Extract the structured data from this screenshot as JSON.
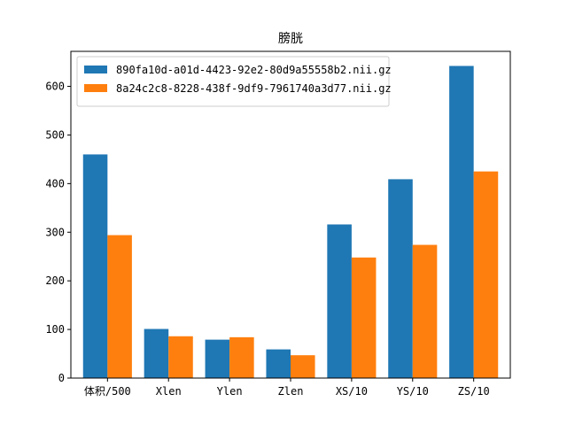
{
  "chart_data": {
    "type": "bar",
    "title": "膀胱",
    "xlabel": "",
    "ylabel": "",
    "categories": [
      "体积/500",
      "Xlen",
      "Ylen",
      "Zlen",
      "XS/10",
      "YS/10",
      "ZS/10"
    ],
    "series": [
      {
        "name": "890fa10d-a01d-4423-92e2-80d9a55558b2.nii.gz",
        "color": "#1f77b4",
        "values": [
          460,
          101,
          79,
          59,
          316,
          409,
          642
        ]
      },
      {
        "name": "8a24c2c8-8228-438f-9df9-7961740a3d77.nii.gz",
        "color": "#ff7f0e",
        "values": [
          294,
          86,
          84,
          47,
          248,
          274,
          425
        ]
      }
    ],
    "ylim": [
      0,
      672
    ],
    "yticks": [
      0,
      100,
      200,
      300,
      400,
      500,
      600
    ],
    "legend_position": "top-left",
    "grid": false
  }
}
